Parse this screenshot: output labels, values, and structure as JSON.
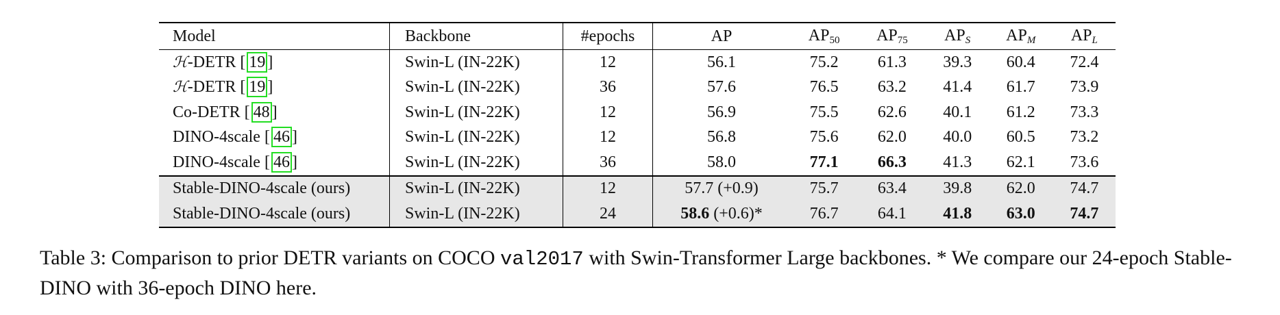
{
  "table": {
    "headers": {
      "model": "Model",
      "backbone": "Backbone",
      "epochs": "#epochs",
      "ap": "AP",
      "ap50_base": "AP",
      "ap50_sub": "50",
      "ap75_base": "AP",
      "ap75_sub": "75",
      "aps_base": "AP",
      "aps_sub": "S",
      "apm_base": "AP",
      "apm_sub": "M",
      "apl_base": "AP",
      "apl_sub": "L"
    },
    "rows": [
      {
        "symbol": "ℋ",
        "model": "-DETR [",
        "cite": "19",
        "close": "]",
        "backbone": "Swin-L (IN-22K)",
        "epochs": "12",
        "ap": "56.1",
        "ap50": "75.2",
        "ap75": "61.3",
        "aps": "39.3",
        "apm": "60.4",
        "apl": "72.4"
      },
      {
        "symbol": "ℋ",
        "model": "-DETR [",
        "cite": "19",
        "close": "]",
        "backbone": "Swin-L (IN-22K)",
        "epochs": "36",
        "ap": "57.6",
        "ap50": "76.5",
        "ap75": "63.2",
        "aps": "41.4",
        "apm": "61.7",
        "apl": "73.9"
      },
      {
        "model": "Co-DETR [",
        "cite": "48",
        "close": "]",
        "backbone": "Swin-L (IN-22K)",
        "epochs": "12",
        "ap": "56.9",
        "ap50": "75.5",
        "ap75": "62.6",
        "aps": "40.1",
        "apm": "61.2",
        "apl": "73.3"
      },
      {
        "model": "DINO-4scale [",
        "cite": "46",
        "close": "]",
        "backbone": "Swin-L (IN-22K)",
        "epochs": "12",
        "ap": "56.8",
        "ap50": "75.6",
        "ap75": "62.0",
        "aps": "40.0",
        "apm": "60.5",
        "apl": "73.2"
      },
      {
        "model": "DINO-4scale [",
        "cite": "46",
        "close": "]",
        "backbone": "Swin-L (IN-22K)",
        "epochs": "36",
        "ap": "58.0",
        "ap50": "77.1",
        "ap75": "66.3",
        "aps": "41.3",
        "apm": "62.1",
        "apl": "73.6"
      }
    ],
    "ours": [
      {
        "model": "Stable-DINO-4scale (ours)",
        "backbone": "Swin-L (IN-22K)",
        "epochs": "12",
        "ap": "57.7",
        "ap_delta": " (+0.9)",
        "ap50": "75.7",
        "ap75": "63.4",
        "aps": "39.8",
        "apm": "62.0",
        "apl": "74.7"
      },
      {
        "model": "Stable-DINO-4scale (ours)",
        "backbone": "Swin-L (IN-22K)",
        "epochs": "24",
        "ap": "58.6",
        "ap_delta": " (+0.6)*",
        "ap50": "76.7",
        "ap75": "64.1",
        "aps": "41.8",
        "apm": "63.0",
        "apl": "74.7"
      }
    ]
  },
  "caption": {
    "prefix": "Table 3: Comparison to prior DETR variants on COCO ",
    "code": "val2017",
    "suffix": " with Swin-Transformer Large backbones. * We compare our 24-epoch Stable-DINO with 36-epoch DINO here."
  }
}
